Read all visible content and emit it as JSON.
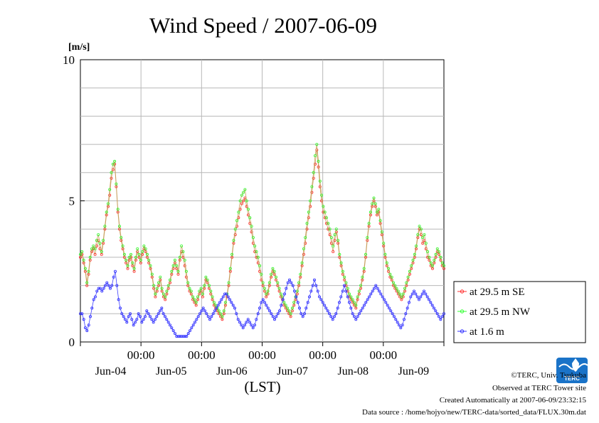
{
  "chart_data": {
    "type": "line",
    "title": "Wind Speed / 2007-06-09",
    "ylabel": "[m/s]",
    "xlabel": "(LST)",
    "ylim": [
      0,
      10
    ],
    "xlim_days": [
      "Jun-04 00:00",
      "Jun-09 24:00"
    ],
    "yticks": [
      "0",
      "5",
      "10"
    ],
    "x_time_ticks": [
      "00:00",
      "00:00",
      "00:00",
      "00:00",
      "00:00"
    ],
    "x_date_labels": [
      "Jun-04",
      "Jun-05",
      "Jun-06",
      "Jun-07",
      "Jun-08",
      "Jun-09"
    ],
    "grid": true,
    "legend_position": "right",
    "sample_interval": "30 min",
    "series": [
      {
        "name": "at 29.5 m SE",
        "color": "#ff3030",
        "values": [
          3.0,
          3.1,
          2.8,
          2.5,
          2.0,
          2.4,
          2.9,
          3.2,
          3.3,
          3.1,
          3.4,
          3.6,
          3.3,
          3.1,
          3.5,
          4.0,
          4.5,
          4.8,
          5.2,
          5.8,
          6.1,
          6.3,
          5.5,
          4.6,
          4.0,
          3.6,
          3.3,
          3.0,
          2.8,
          2.6,
          2.9,
          3.0,
          2.7,
          2.5,
          2.9,
          3.2,
          3.0,
          2.8,
          3.1,
          3.3,
          3.2,
          3.0,
          2.8,
          2.6,
          2.3,
          1.9,
          1.6,
          1.8,
          2.0,
          2.2,
          1.8,
          1.6,
          1.5,
          1.7,
          1.9,
          2.1,
          2.4,
          2.6,
          2.8,
          2.6,
          2.4,
          2.9,
          3.2,
          3.0,
          2.7,
          2.3,
          2.0,
          1.8,
          1.7,
          1.5,
          1.4,
          1.3,
          1.5,
          1.7,
          1.8,
          1.6,
          1.9,
          2.2,
          2.1,
          1.9,
          1.7,
          1.5,
          1.3,
          1.2,
          1.1,
          1.0,
          0.9,
          0.8,
          1.0,
          1.3,
          1.6,
          2.0,
          2.5,
          3.0,
          3.5,
          3.8,
          4.1,
          4.4,
          4.7,
          4.9,
          5.0,
          5.1,
          4.8,
          4.5,
          4.2,
          3.9,
          3.5,
          3.2,
          3.0,
          2.8,
          2.5,
          2.2,
          2.0,
          1.8,
          1.6,
          1.7,
          2.0,
          2.3,
          2.5,
          2.4,
          2.2,
          2.0,
          1.8,
          1.6,
          1.5,
          1.3,
          1.2,
          1.1,
          1.0,
          0.9,
          1.1,
          1.3,
          1.5,
          1.7,
          2.0,
          2.3,
          2.7,
          3.1,
          3.5,
          4.0,
          4.4,
          4.8,
          5.3,
          5.8,
          6.3,
          6.8,
          6.2,
          5.5,
          5.0,
          4.6,
          4.4,
          4.2,
          4.0,
          3.8,
          3.5,
          3.2,
          3.6,
          3.9,
          3.5,
          3.0,
          2.7,
          2.4,
          2.2,
          2.0,
          1.8,
          1.6,
          1.5,
          1.4,
          1.3,
          1.2,
          1.5,
          1.7,
          1.9,
          2.2,
          2.5,
          3.0,
          3.6,
          4.1,
          4.5,
          4.8,
          5.0,
          4.8,
          4.5,
          4.6,
          4.2,
          3.8,
          3.4,
          3.0,
          2.7,
          2.5,
          2.3,
          2.2,
          2.0,
          1.9,
          1.8,
          1.7,
          1.6,
          1.5,
          1.6,
          1.8,
          2.0,
          2.2,
          2.4,
          2.6,
          2.8,
          3.0,
          3.3,
          3.7,
          4.0,
          3.8,
          3.5,
          3.6,
          3.3,
          3.0,
          2.9,
          2.7,
          2.6,
          2.8,
          3.0,
          3.2,
          3.1,
          2.9,
          2.7,
          2.6
        ]
      },
      {
        "name": "at 29.5 m NW",
        "color": "#30ff30",
        "values": [
          3.1,
          3.2,
          2.9,
          2.6,
          2.1,
          2.5,
          3.0,
          3.3,
          3.4,
          3.3,
          3.6,
          3.8,
          3.5,
          3.2,
          3.6,
          4.1,
          4.6,
          4.9,
          5.4,
          6.0,
          6.3,
          6.4,
          5.6,
          4.7,
          4.1,
          3.7,
          3.4,
          3.1,
          2.9,
          2.7,
          3.0,
          3.1,
          2.8,
          2.6,
          3.0,
          3.3,
          3.1,
          2.9,
          3.2,
          3.4,
          3.3,
          3.1,
          2.9,
          2.7,
          2.4,
          2.0,
          1.7,
          1.9,
          2.1,
          2.3,
          1.9,
          1.7,
          1.6,
          1.8,
          2.0,
          2.2,
          2.5,
          2.7,
          2.9,
          2.7,
          2.5,
          3.0,
          3.4,
          3.2,
          2.9,
          2.5,
          2.1,
          1.9,
          1.8,
          1.6,
          1.5,
          1.4,
          1.6,
          1.8,
          1.9,
          1.7,
          2.0,
          2.3,
          2.2,
          2.0,
          1.8,
          1.6,
          1.4,
          1.3,
          1.2,
          1.1,
          1.0,
          0.9,
          1.1,
          1.4,
          1.7,
          2.1,
          2.6,
          3.1,
          3.6,
          4.0,
          4.3,
          4.6,
          5.0,
          5.2,
          5.3,
          5.4,
          5.0,
          4.7,
          4.4,
          4.1,
          3.7,
          3.4,
          3.2,
          3.0,
          2.7,
          2.4,
          2.1,
          1.9,
          1.7,
          1.8,
          2.1,
          2.4,
          2.6,
          2.5,
          2.3,
          2.1,
          1.9,
          1.7,
          1.6,
          1.4,
          1.3,
          1.2,
          1.1,
          1.0,
          1.2,
          1.4,
          1.6,
          1.8,
          2.1,
          2.4,
          2.8,
          3.3,
          3.7,
          4.2,
          4.6,
          5.0,
          5.5,
          6.0,
          6.6,
          7.0,
          6.4,
          5.7,
          5.2,
          4.8,
          4.6,
          4.4,
          4.2,
          4.0,
          3.7,
          3.4,
          3.8,
          4.0,
          3.6,
          3.1,
          2.8,
          2.5,
          2.3,
          2.1,
          1.9,
          1.7,
          1.6,
          1.5,
          1.4,
          1.3,
          1.6,
          1.8,
          2.0,
          2.3,
          2.6,
          3.1,
          3.7,
          4.2,
          4.6,
          4.9,
          5.1,
          4.9,
          4.6,
          4.7,
          4.3,
          3.9,
          3.5,
          3.1,
          2.8,
          2.6,
          2.4,
          2.3,
          2.1,
          2.0,
          1.9,
          1.8,
          1.7,
          1.6,
          1.7,
          1.9,
          2.1,
          2.3,
          2.5,
          2.7,
          2.9,
          3.1,
          3.4,
          3.8,
          4.1,
          4.0,
          3.7,
          3.8,
          3.5,
          3.2,
          3.0,
          2.8,
          2.7,
          2.9,
          3.1,
          3.3,
          3.2,
          3.0,
          2.8,
          2.7
        ]
      },
      {
        "name": "at 1.6 m",
        "color": "#3030ff",
        "values": [
          1.0,
          1.0,
          0.8,
          0.5,
          0.4,
          0.6,
          0.9,
          1.2,
          1.5,
          1.6,
          1.8,
          1.9,
          1.9,
          1.8,
          1.9,
          2.0,
          2.1,
          2.0,
          1.9,
          2.0,
          2.3,
          2.5,
          2.0,
          1.5,
          1.2,
          1.0,
          0.9,
          0.8,
          0.7,
          0.9,
          1.0,
          0.8,
          0.6,
          0.7,
          0.8,
          1.0,
          0.9,
          0.7,
          0.8,
          0.9,
          1.1,
          1.0,
          0.9,
          0.8,
          0.7,
          0.8,
          0.9,
          1.0,
          1.1,
          1.2,
          1.0,
          0.9,
          0.8,
          0.7,
          0.6,
          0.5,
          0.4,
          0.3,
          0.2,
          0.2,
          0.2,
          0.2,
          0.2,
          0.2,
          0.2,
          0.3,
          0.4,
          0.5,
          0.6,
          0.7,
          0.8,
          0.9,
          1.0,
          1.1,
          1.2,
          1.1,
          1.0,
          0.9,
          0.8,
          0.9,
          1.0,
          1.1,
          1.2,
          1.3,
          1.4,
          1.5,
          1.6,
          1.7,
          1.7,
          1.6,
          1.5,
          1.4,
          1.3,
          1.2,
          1.0,
          0.8,
          0.7,
          0.6,
          0.5,
          0.6,
          0.7,
          0.8,
          0.7,
          0.6,
          0.5,
          0.6,
          0.8,
          1.0,
          1.2,
          1.4,
          1.5,
          1.4,
          1.3,
          1.2,
          1.1,
          1.0,
          0.9,
          0.8,
          0.9,
          1.0,
          1.1,
          1.3,
          1.5,
          1.7,
          1.9,
          2.1,
          2.2,
          2.1,
          2.0,
          1.8,
          1.6,
          1.4,
          1.2,
          1.0,
          0.9,
          1.0,
          1.2,
          1.4,
          1.6,
          1.8,
          2.0,
          2.2,
          2.0,
          1.8,
          1.6,
          1.5,
          1.4,
          1.3,
          1.2,
          1.1,
          1.0,
          0.9,
          0.8,
          0.9,
          1.0,
          1.2,
          1.4,
          1.6,
          1.8,
          2.0,
          1.8,
          1.6,
          1.4,
          1.2,
          1.0,
          0.9,
          0.8,
          0.9,
          1.0,
          1.1,
          1.2,
          1.3,
          1.4,
          1.5,
          1.6,
          1.7,
          1.8,
          1.9,
          2.0,
          1.9,
          1.8,
          1.7,
          1.6,
          1.5,
          1.4,
          1.3,
          1.2,
          1.1,
          1.0,
          0.9,
          0.8,
          0.7,
          0.6,
          0.5,
          0.6,
          0.8,
          1.0,
          1.2,
          1.4,
          1.6,
          1.7,
          1.8,
          1.7,
          1.6,
          1.5,
          1.6,
          1.7,
          1.8,
          1.7,
          1.6,
          1.5,
          1.4,
          1.3,
          1.2,
          1.1,
          1.0,
          0.9,
          0.8,
          0.9,
          1.0
        ]
      }
    ]
  },
  "credits": {
    "copyright": "©TERC, Univ. Tsukuba",
    "observed": "Observed at TERC Tower site",
    "created": "Created Automatically at 2007-06-09/23:32:15",
    "source": "Data source : /home/hojyo/new/TERC-data/sorted_data/FLUX.30m.dat"
  },
  "logo": {
    "text": "TERC",
    "color": "#1a73c8"
  }
}
